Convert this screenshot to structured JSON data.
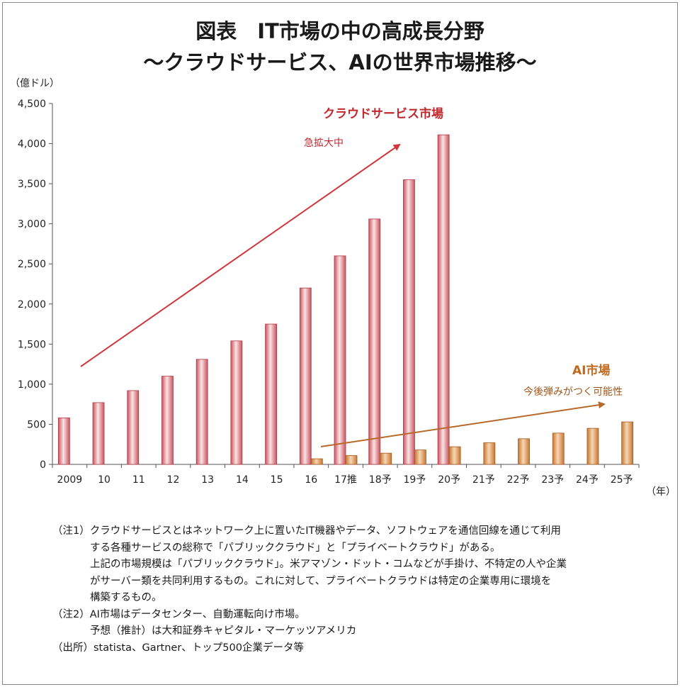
{
  "title": {
    "line1": "図表　IT市場の中の高成長分野",
    "line2": "～クラウドサービス、AIの世界市場推移～"
  },
  "y_unit": "（億ドル）",
  "x_unit": "（年）",
  "annotations": {
    "cloud_title": "クラウドサービス市場",
    "cloud_sub": "急拡大中",
    "ai_title": "AI市場",
    "ai_sub": "今後弾みがつく可能性"
  },
  "notes": {
    "n1_l1": "（注1）クラウドサービスとはネットワーク上に置いたIT機器やデータ、ソフトウェアを通信回線を通じて利用",
    "n1_l2": "する各種サービスの総称で「パブリッククラウド」と「プライベートクラウド」がある。",
    "n1_l3": "上記の市場規模は「パブリッククラウド」。米アマゾン・ドット・コムなどが手掛け、不特定の人や企業",
    "n1_l4": "がサーバー類を共同利用するもの。これに対して、プライベートクラウドは特定の企業専用に環境を",
    "n1_l5": "構築するもの。",
    "n2_l1": "（注2）AI市場はデータセンター、自動運転向け市場。",
    "n2_l2": "予想（推計）は大和証券キャピタル・マーケッツアメリカ",
    "source": "（出所）statista、Gartner、トップ500企業データ等"
  },
  "colors": {
    "cloud_bar": "#e8a0a6",
    "cloud_bar_edge": "#b03a45",
    "ai_bar": "#e3a56c",
    "ai_bar_edge": "#a8581c",
    "cloud_arrow": "#d0353a",
    "ai_arrow": "#b8692a"
  },
  "chart_data": {
    "type": "bar",
    "categories": [
      "2009",
      "10",
      "11",
      "12",
      "13",
      "14",
      "15",
      "16",
      "17推",
      "18予",
      "19予",
      "20予",
      "21予",
      "22予",
      "23予",
      "24予",
      "25予"
    ],
    "series": [
      {
        "name": "クラウドサービス市場",
        "values": [
          580,
          770,
          920,
          1100,
          1310,
          1540,
          1750,
          2200,
          2600,
          3060,
          3550,
          4110,
          null,
          null,
          null,
          null,
          null
        ]
      },
      {
        "name": "AI市場",
        "values": [
          null,
          null,
          null,
          null,
          null,
          null,
          null,
          70,
          110,
          140,
          180,
          220,
          270,
          320,
          390,
          450,
          530
        ]
      }
    ],
    "ylim": [
      0,
      4500
    ],
    "yticks": [
      0,
      500,
      1000,
      1500,
      2000,
      2500,
      3000,
      3500,
      4000,
      4500
    ],
    "ytick_labels": [
      "0",
      "500",
      "1,000",
      "1,500",
      "2,000",
      "2,500",
      "3,000",
      "3,500",
      "4,000",
      "4,500"
    ],
    "grid": false,
    "legend": "none"
  }
}
